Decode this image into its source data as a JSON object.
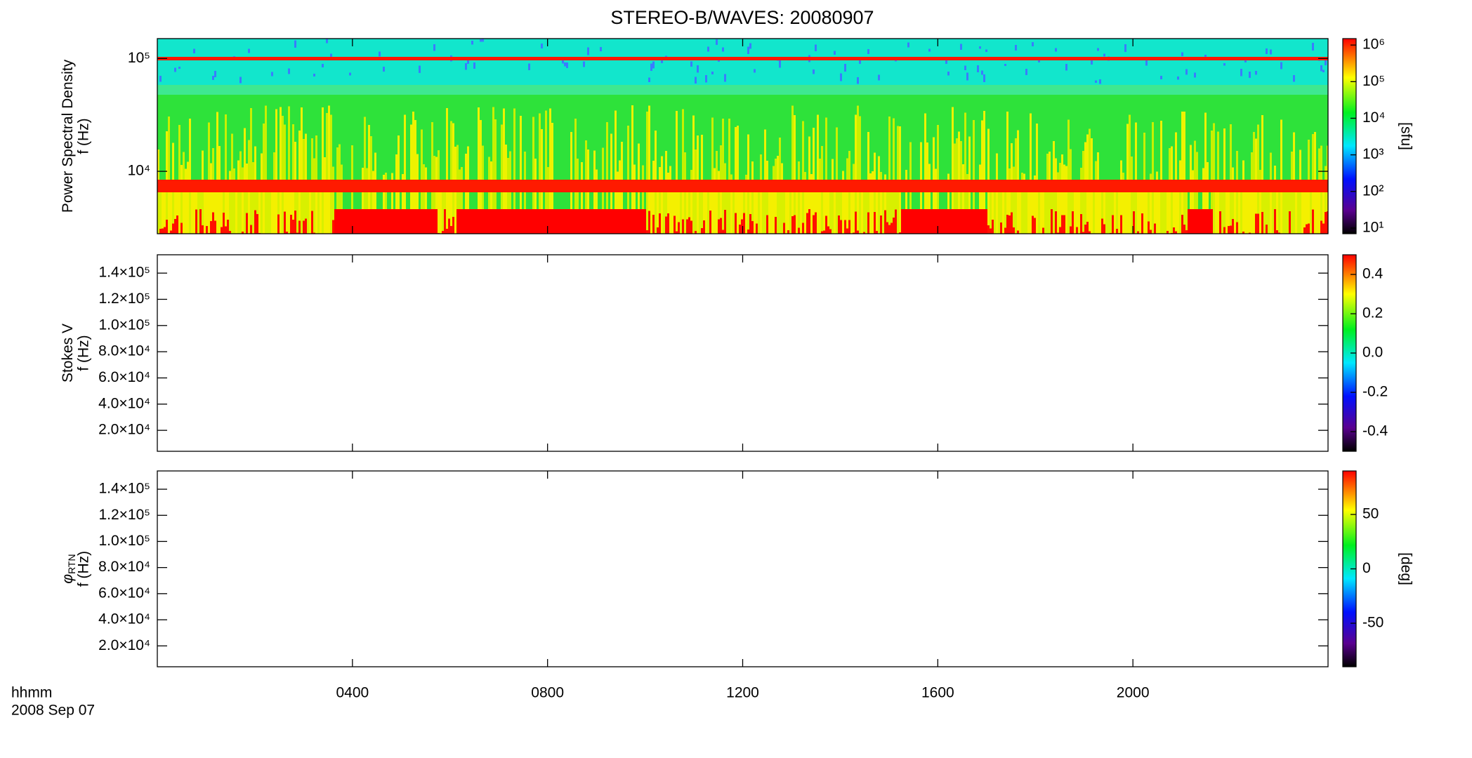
{
  "title": "STEREO-B/WAVES: 20080907",
  "x_axis": {
    "label": "hhmm",
    "date": "2008 Sep 07",
    "xlim": [
      0,
      24
    ],
    "xticks": [
      {
        "value": 4,
        "label": "0400"
      },
      {
        "value": 8,
        "label": "0800"
      },
      {
        "value": 12,
        "label": "1200"
      },
      {
        "value": 16,
        "label": "1600"
      },
      {
        "value": 20,
        "label": "2000"
      }
    ]
  },
  "chart_data": [
    {
      "type": "spectrogram",
      "ylabel": "Power Spectral Density",
      "ylabel_unit": "f (Hz)",
      "yscale": "log",
      "ylim": [
        2800,
        150000
      ],
      "yticks": [
        {
          "value": 10000,
          "label": "10⁴"
        },
        {
          "value": 100000,
          "label": "10⁵"
        }
      ],
      "colorbar": {
        "label": "[sfu]",
        "scale": "log",
        "lim": [
          7,
          1500000
        ],
        "ticks": [
          {
            "value": 10,
            "label": "10¹"
          },
          {
            "value": 100,
            "label": "10²"
          },
          {
            "value": 1000,
            "label": "10³"
          },
          {
            "value": 10000,
            "label": "10⁴"
          },
          {
            "value": 100000,
            "label": "10⁵"
          },
          {
            "value": 1000000,
            "label": "10⁶"
          }
        ]
      }
    },
    {
      "type": "spectrogram",
      "ylabel": "Stokes V",
      "ylabel_unit": "f (Hz)",
      "yscale": "linear",
      "ylim": [
        4000,
        154000
      ],
      "yticks": [
        {
          "value": 20000,
          "label": "2.0×10⁴"
        },
        {
          "value": 40000,
          "label": "4.0×10⁴"
        },
        {
          "value": 60000,
          "label": "6.0×10⁴"
        },
        {
          "value": 80000,
          "label": "8.0×10⁴"
        },
        {
          "value": 100000,
          "label": "1.0×10⁵"
        },
        {
          "value": 120000,
          "label": "1.2×10⁵"
        },
        {
          "value": 140000,
          "label": "1.4×10⁵"
        }
      ],
      "colorbar": {
        "scale": "linear",
        "lim": [
          -0.5,
          0.5
        ],
        "ticks": [
          -0.4,
          -0.2,
          {
            "value": 0,
            "label": "0.0"
          },
          0.2,
          0.4
        ]
      }
    },
    {
      "type": "spectrogram",
      "ylabel": "φ",
      "ylabel_sub": "RTN",
      "ylabel_unit": "f (Hz)",
      "yscale": "linear",
      "ylim": [
        4000,
        154000
      ],
      "yticks": [
        {
          "value": 20000,
          "label": "2.0×10⁴"
        },
        {
          "value": 40000,
          "label": "4.0×10⁴"
        },
        {
          "value": 60000,
          "label": "6.0×10⁴"
        },
        {
          "value": 80000,
          "label": "8.0×10⁴"
        },
        {
          "value": 100000,
          "label": "1.0×10⁵"
        },
        {
          "value": 120000,
          "label": "1.2×10⁵"
        },
        {
          "value": 140000,
          "label": "1.4×10⁵"
        }
      ],
      "colorbar": {
        "label": "[deg]",
        "scale": "linear",
        "lim": [
          -90,
          90
        ],
        "ticks": [
          -50,
          0,
          50
        ]
      }
    }
  ]
}
